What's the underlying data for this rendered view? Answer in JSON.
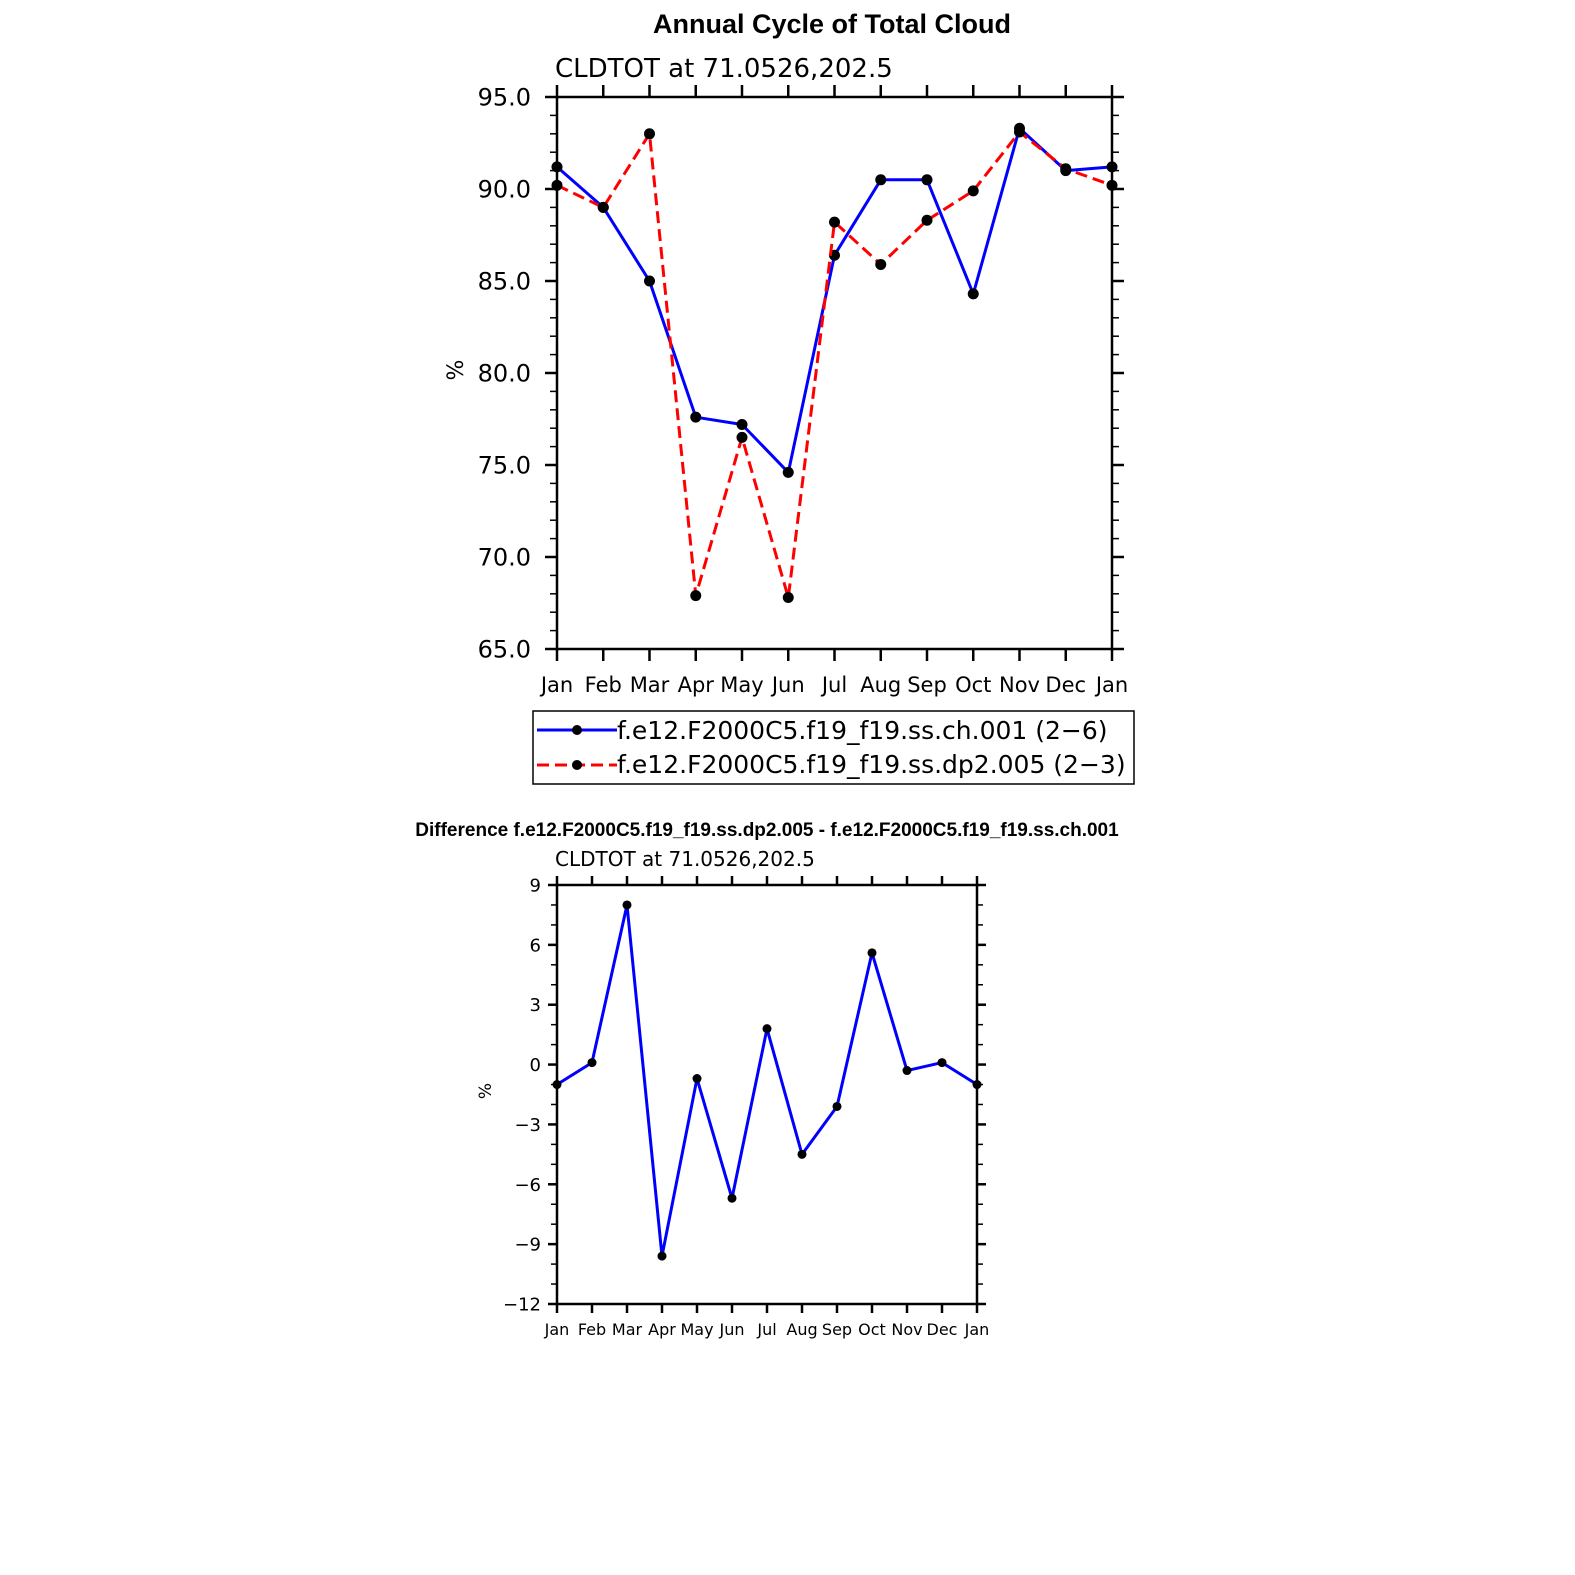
{
  "chart_data": [
    {
      "type": "line",
      "title": "Annual Cycle of Total Cloud",
      "subtitle": "CLDTOT at 71.0526,202.5",
      "ylabel": "%",
      "xlabel": "",
      "categories": [
        "Jan",
        "Feb",
        "Mar",
        "Apr",
        "May",
        "Jun",
        "Jul",
        "Aug",
        "Sep",
        "Oct",
        "Nov",
        "Dec",
        "Jan"
      ],
      "ylim": [
        65.0,
        95.0
      ],
      "yticks": [
        "65.0",
        "70.0",
        "75.0",
        "80.0",
        "85.0",
        "90.0",
        "95.0"
      ],
      "grid": false,
      "legend_position": "bottom",
      "series": [
        {
          "name": "f.e12.F2000C5.f19_f19.ss.ch.001 (2−6)",
          "color": "#0000ff",
          "dash": "solid",
          "values": [
            91.2,
            89.0,
            85.0,
            77.6,
            77.2,
            74.6,
            86.4,
            90.5,
            90.5,
            84.3,
            93.3,
            91.0,
            91.2
          ]
        },
        {
          "name": "f.e12.F2000C5.f19_f19.ss.dp2.005 (2−3)",
          "color": "#ff0000",
          "dash": "dashed",
          "values": [
            90.2,
            89.0,
            93.0,
            67.9,
            76.5,
            67.8,
            88.2,
            85.9,
            88.3,
            89.9,
            93.1,
            91.1,
            90.2
          ]
        }
      ]
    },
    {
      "type": "line",
      "title": "Difference f.e12.F2000C5.f19_f19.ss.dp2.005 - f.e12.F2000C5.f19_f19.ss.ch.001",
      "subtitle": "CLDTOT at 71.0526,202.5",
      "ylabel": "%",
      "xlabel": "",
      "categories": [
        "Jan",
        "Feb",
        "Mar",
        "Apr",
        "May",
        "Jun",
        "Jul",
        "Aug",
        "Sep",
        "Oct",
        "Nov",
        "Dec",
        "Jan"
      ],
      "ylim": [
        -12,
        9
      ],
      "yticks": [
        "−12",
        "−9",
        "−6",
        "−3",
        "0",
        "3",
        "6",
        "9"
      ],
      "grid": false,
      "series": [
        {
          "color": "#0000ff",
          "values": [
            -1.0,
            0.1,
            8.0,
            -9.6,
            -0.7,
            -6.7,
            1.8,
            -4.5,
            -2.1,
            5.6,
            -0.3,
            0.1,
            -1.0
          ]
        }
      ]
    }
  ]
}
